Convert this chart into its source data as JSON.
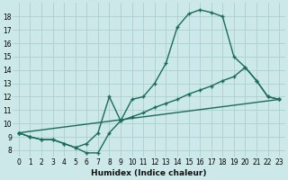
{
  "xlabel": "Humidex (Indice chaleur)",
  "bg_color": "#cce8e8",
  "grid_color": "#aacfcf",
  "line_color": "#1a6b5a",
  "xlim": [
    -0.5,
    23.5
  ],
  "ylim": [
    7.5,
    19.0
  ],
  "yticks": [
    8,
    9,
    10,
    11,
    12,
    13,
    14,
    15,
    16,
    17,
    18
  ],
  "xticks": [
    0,
    1,
    2,
    3,
    4,
    5,
    6,
    7,
    8,
    9,
    10,
    11,
    12,
    13,
    14,
    15,
    16,
    17,
    18,
    19,
    20,
    21,
    22,
    23
  ],
  "line1_x": [
    0,
    1,
    2,
    3,
    4,
    5,
    6,
    7,
    8,
    9,
    10,
    11,
    12,
    13,
    14,
    15,
    16,
    17,
    18,
    19,
    20,
    21,
    22,
    23
  ],
  "line1_y": [
    9.3,
    9.0,
    8.8,
    8.8,
    8.5,
    8.2,
    7.8,
    7.8,
    9.3,
    10.2,
    11.8,
    12.0,
    13.0,
    14.5,
    17.2,
    18.2,
    18.5,
    18.3,
    18.0,
    15.0,
    14.2,
    13.2,
    12.0,
    11.8
  ],
  "line2_x": [
    0,
    1,
    2,
    3,
    4,
    5,
    6,
    7,
    8,
    9,
    10,
    11,
    12,
    13,
    14,
    15,
    16,
    17,
    18,
    19,
    20,
    21,
    22,
    23
  ],
  "line2_y": [
    9.3,
    9.0,
    8.8,
    8.8,
    8.5,
    8.2,
    8.5,
    9.3,
    12.0,
    10.2,
    10.5,
    10.8,
    11.2,
    11.5,
    11.8,
    12.2,
    12.5,
    12.8,
    13.2,
    13.5,
    14.2,
    13.2,
    12.0,
    11.8
  ],
  "line3_x": [
    0,
    23
  ],
  "line3_y": [
    9.3,
    11.8
  ]
}
